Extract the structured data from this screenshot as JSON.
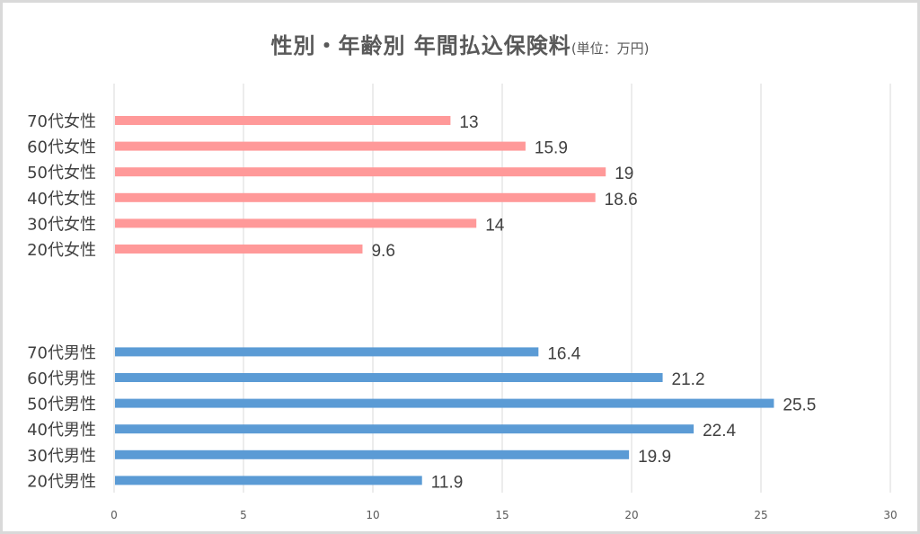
{
  "chart_data": {
    "type": "bar",
    "orientation": "horizontal",
    "title": "性別・年齢別 年間払込保険料",
    "title_unit": "(単位：万円)",
    "xlim": [
      0,
      30
    ],
    "xticks": [
      "0",
      "5",
      "10",
      "15",
      "20",
      "25",
      "30"
    ],
    "grid": true,
    "legend": "none",
    "groups": [
      {
        "color": "#ff9999",
        "categories": [
          "70代女性",
          "60代女性",
          "50代女性",
          "40代女性",
          "30代女性",
          "20代女性"
        ],
        "values": [
          13,
          15.9,
          19,
          18.6,
          14,
          9.6
        ]
      },
      {
        "color": "#5b9bd5",
        "categories": [
          "70代男性",
          "60代男性",
          "50代男性",
          "40代男性",
          "30代男性",
          "20代男性"
        ],
        "values": [
          16.4,
          21.2,
          25.5,
          22.4,
          19.9,
          11.9
        ]
      }
    ]
  }
}
